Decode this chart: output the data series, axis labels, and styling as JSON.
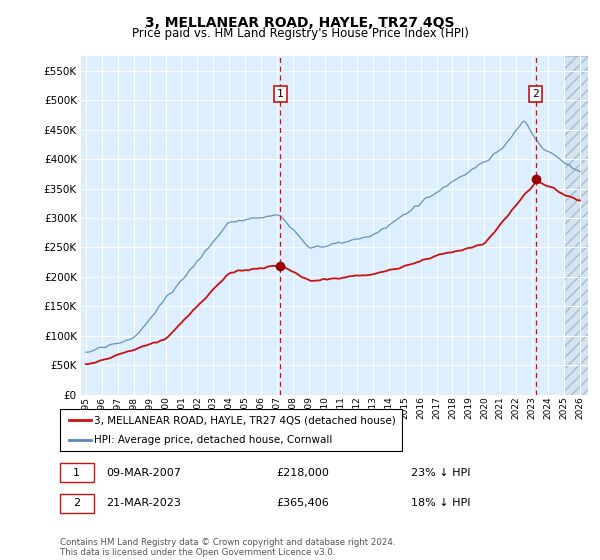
{
  "title": "3, MELLANEAR ROAD, HAYLE, TR27 4QS",
  "subtitle": "Price paid vs. HM Land Registry's House Price Index (HPI)",
  "ylim": [
    0,
    575000
  ],
  "yticks": [
    0,
    50000,
    100000,
    150000,
    200000,
    250000,
    300000,
    350000,
    400000,
    450000,
    500000,
    550000
  ],
  "x_start_year": 1995,
  "x_end_year": 2026,
  "marker1_x": 2007.19,
  "marker2_x": 2023.22,
  "marker1_date": "09-MAR-2007",
  "marker1_price": "£218,000",
  "marker1_hpi": "23% ↓ HPI",
  "marker2_date": "21-MAR-2023",
  "marker2_price": "£365,406",
  "marker2_hpi": "18% ↓ HPI",
  "hpi_line_color": "#5588bb",
  "price_line_color": "#cc1111",
  "background_color": "#ddeeff",
  "legend_label_price": "3, MELLANEAR ROAD, HAYLE, TR27 4QS (detached house)",
  "legend_label_hpi": "HPI: Average price, detached house, Cornwall",
  "footer": "Contains HM Land Registry data © Crown copyright and database right 2024.\nThis data is licensed under the Open Government Licence v3.0."
}
